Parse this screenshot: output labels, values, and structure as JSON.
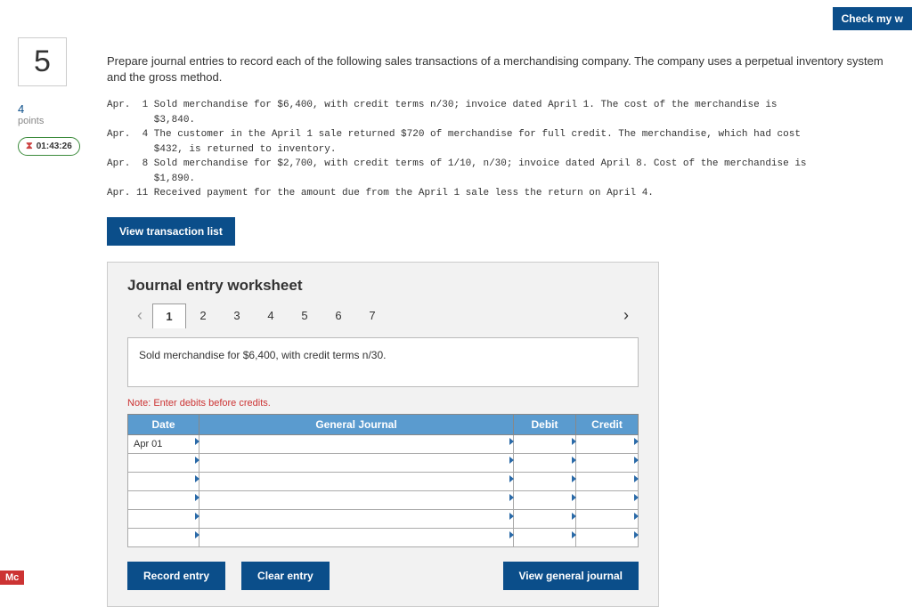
{
  "topbar": {
    "check_label": "Check my w"
  },
  "left": {
    "question_num": "5",
    "points_value": "4",
    "points_label": "points",
    "timer": "01:43:26"
  },
  "instructions": "Prepare journal entries to record each of the following sales transactions of a merchandising company. The company uses a perpetual inventory system and the gross method.",
  "transactions": "Apr.  1 Sold merchandise for $6,400, with credit terms n/30; invoice dated April 1. The cost of the merchandise is\n        $3,840.\nApr.  4 The customer in the April 1 sale returned $720 of merchandise for full credit. The merchandise, which had cost\n        $432, is returned to inventory.\nApr.  8 Sold merchandise for $2,700, with credit terms of 1/10, n/30; invoice dated April 8. Cost of the merchandise is\n        $1,890.\nApr. 11 Received payment for the amount due from the April 1 sale less the return on April 4.",
  "buttons": {
    "view_txn": "View transaction list",
    "record": "Record entry",
    "clear": "Clear entry",
    "view_gj": "View general journal"
  },
  "worksheet": {
    "title": "Journal entry worksheet",
    "tabs": [
      "1",
      "2",
      "3",
      "4",
      "5",
      "6",
      "7"
    ],
    "active_tab": 0,
    "description": "Sold merchandise for $6,400, with credit terms n/30.",
    "note": "Note: Enter debits before credits.",
    "headers": {
      "date": "Date",
      "gj": "General Journal",
      "debit": "Debit",
      "credit": "Credit"
    },
    "rows": [
      {
        "date": "Apr 01",
        "gj": "",
        "debit": "",
        "credit": ""
      },
      {
        "date": "",
        "gj": "",
        "debit": "",
        "credit": ""
      },
      {
        "date": "",
        "gj": "",
        "debit": "",
        "credit": ""
      },
      {
        "date": "",
        "gj": "",
        "debit": "",
        "credit": ""
      },
      {
        "date": "",
        "gj": "",
        "debit": "",
        "credit": ""
      },
      {
        "date": "",
        "gj": "",
        "debit": "",
        "credit": ""
      }
    ]
  },
  "footer": {
    "logo": "Mc"
  },
  "colors": {
    "primary": "#0b4e8a",
    "table_header": "#5a9bcf",
    "note": "#c33",
    "panel_bg": "#f2f2f2"
  }
}
